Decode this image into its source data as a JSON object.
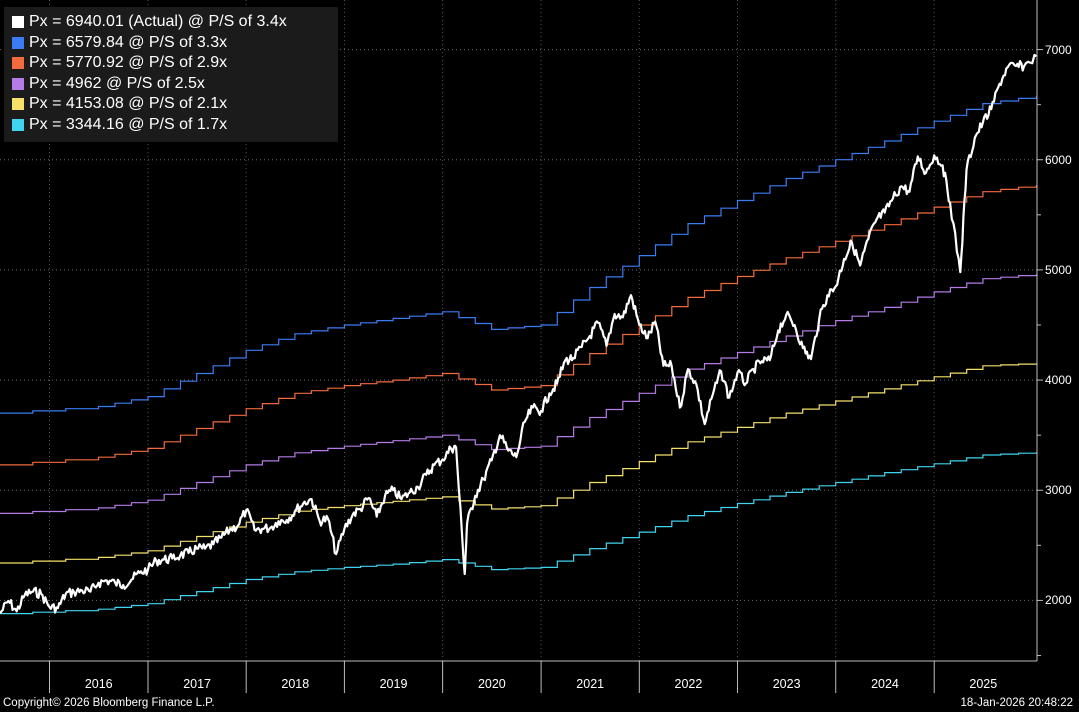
{
  "chart_data": {
    "type": "line",
    "yticks": [
      2000,
      3000,
      4000,
      5000,
      6000,
      7000
    ],
    "ylim": [
      1450,
      7450
    ],
    "xticks": [
      "2016",
      "2017",
      "2018",
      "2019",
      "2020",
      "2021",
      "2022",
      "2023",
      "2024",
      "2025"
    ],
    "xlim": [
      "2015-07-01",
      "2026-01-18"
    ],
    "series": [
      {
        "name": "Px = 6940.01 (Actual) @ P/S of 3.4x",
        "color": "#ffffff",
        "points": [
          [
            "2015-07-01",
            1880
          ],
          [
            "2015-08-01",
            1995
          ],
          [
            "2015-09-01",
            1900
          ],
          [
            "2015-10-01",
            2050
          ],
          [
            "2015-11-01",
            2080
          ],
          [
            "2015-12-01",
            2060
          ],
          [
            "2016-01-01",
            1940
          ],
          [
            "2016-02-01",
            1930
          ],
          [
            "2016-03-01",
            2060
          ],
          [
            "2016-04-01",
            2075
          ],
          [
            "2016-05-01",
            2090
          ],
          [
            "2016-06-01",
            2080
          ],
          [
            "2016-07-01",
            2160
          ],
          [
            "2016-08-01",
            2180
          ],
          [
            "2016-09-01",
            2160
          ],
          [
            "2016-10-01",
            2140
          ],
          [
            "2016-11-01",
            2190
          ],
          [
            "2016-12-01",
            2250
          ],
          [
            "2017-01-01",
            2280
          ],
          [
            "2017-02-01",
            2360
          ],
          [
            "2017-03-01",
            2370
          ],
          [
            "2017-04-01",
            2380
          ],
          [
            "2017-05-01",
            2410
          ],
          [
            "2017-06-01",
            2430
          ],
          [
            "2017-07-01",
            2470
          ],
          [
            "2017-08-01",
            2470
          ],
          [
            "2017-09-01",
            2510
          ],
          [
            "2017-10-01",
            2570
          ],
          [
            "2017-11-01",
            2640
          ],
          [
            "2017-12-01",
            2680
          ],
          [
            "2018-01-01",
            2820
          ],
          [
            "2018-02-01",
            2640
          ],
          [
            "2018-03-01",
            2650
          ],
          [
            "2018-04-01",
            2660
          ],
          [
            "2018-05-01",
            2720
          ],
          [
            "2018-06-01",
            2730
          ],
          [
            "2018-07-01",
            2810
          ],
          [
            "2018-08-01",
            2880
          ],
          [
            "2018-09-01",
            2920
          ],
          [
            "2018-10-01",
            2720
          ],
          [
            "2018-11-01",
            2740
          ],
          [
            "2018-12-01",
            2420
          ],
          [
            "2019-01-01",
            2650
          ],
          [
            "2019-02-01",
            2780
          ],
          [
            "2019-03-01",
            2830
          ],
          [
            "2019-04-01",
            2930
          ],
          [
            "2019-05-01",
            2760
          ],
          [
            "2019-06-01",
            2950
          ],
          [
            "2019-07-01",
            3000
          ],
          [
            "2019-08-01",
            2920
          ],
          [
            "2019-09-01",
            2980
          ],
          [
            "2019-10-01",
            3030
          ],
          [
            "2019-11-01",
            3140
          ],
          [
            "2019-12-01",
            3230
          ],
          [
            "2020-01-01",
            3280
          ],
          [
            "2020-02-01",
            3380
          ],
          [
            "2020-02-20",
            3390
          ],
          [
            "2020-03-23",
            2240
          ],
          [
            "2020-04-01",
            2700
          ],
          [
            "2020-05-01",
            2950
          ],
          [
            "2020-06-01",
            3100
          ],
          [
            "2020-07-01",
            3270
          ],
          [
            "2020-08-01",
            3500
          ],
          [
            "2020-09-01",
            3360
          ],
          [
            "2020-10-01",
            3300
          ],
          [
            "2020-11-01",
            3620
          ],
          [
            "2020-12-01",
            3750
          ],
          [
            "2021-01-01",
            3720
          ],
          [
            "2021-02-01",
            3880
          ],
          [
            "2021-03-01",
            3970
          ],
          [
            "2021-04-01",
            4180
          ],
          [
            "2021-05-01",
            4200
          ],
          [
            "2021-06-01",
            4300
          ],
          [
            "2021-07-01",
            4400
          ],
          [
            "2021-08-01",
            4520
          ],
          [
            "2021-09-01",
            4310
          ],
          [
            "2021-10-01",
            4600
          ],
          [
            "2021-11-01",
            4570
          ],
          [
            "2021-12-01",
            4770
          ],
          [
            "2022-01-01",
            4500
          ],
          [
            "2022-02-01",
            4380
          ],
          [
            "2022-03-01",
            4530
          ],
          [
            "2022-04-01",
            4130
          ],
          [
            "2022-05-01",
            4130
          ],
          [
            "2022-06-01",
            3750
          ],
          [
            "2022-07-01",
            4100
          ],
          [
            "2022-08-01",
            3960
          ],
          [
            "2022-09-01",
            3600
          ],
          [
            "2022-10-01",
            3870
          ],
          [
            "2022-11-01",
            4080
          ],
          [
            "2022-12-01",
            3840
          ],
          [
            "2023-01-01",
            4070
          ],
          [
            "2023-02-01",
            3970
          ],
          [
            "2023-03-01",
            4100
          ],
          [
            "2023-04-01",
            4170
          ],
          [
            "2023-05-01",
            4180
          ],
          [
            "2023-06-01",
            4450
          ],
          [
            "2023-07-01",
            4590
          ],
          [
            "2023-08-01",
            4500
          ],
          [
            "2023-09-01",
            4290
          ],
          [
            "2023-10-01",
            4190
          ],
          [
            "2023-11-01",
            4560
          ],
          [
            "2023-12-01",
            4770
          ],
          [
            "2024-01-01",
            4850
          ],
          [
            "2024-02-01",
            5100
          ],
          [
            "2024-03-01",
            5250
          ],
          [
            "2024-04-01",
            5040
          ],
          [
            "2024-05-01",
            5280
          ],
          [
            "2024-06-01",
            5460
          ],
          [
            "2024-07-01",
            5520
          ],
          [
            "2024-08-01",
            5650
          ],
          [
            "2024-09-01",
            5760
          ],
          [
            "2024-10-01",
            5710
          ],
          [
            "2024-11-01",
            6030
          ],
          [
            "2024-12-01",
            5880
          ],
          [
            "2025-01-01",
            6040
          ],
          [
            "2025-02-01",
            5950
          ],
          [
            "2025-03-01",
            5610
          ],
          [
            "2025-04-08",
            4980
          ],
          [
            "2025-05-01",
            5910
          ],
          [
            "2025-06-01",
            6200
          ],
          [
            "2025-07-01",
            6340
          ],
          [
            "2025-08-01",
            6460
          ],
          [
            "2025-09-01",
            6690
          ],
          [
            "2025-10-01",
            6840
          ],
          [
            "2025-11-01",
            6850
          ],
          [
            "2025-12-01",
            6850
          ],
          [
            "2026-01-16",
            6940
          ]
        ]
      },
      {
        "name": "Px = 6579.84 @ P/S of 3.3x",
        "color": "#3b7cf5",
        "points": [
          [
            "2015-07-01",
            3700
          ],
          [
            "2016-07-01",
            3760
          ],
          [
            "2017-01-01",
            3850
          ],
          [
            "2017-07-01",
            4060
          ],
          [
            "2018-01-01",
            4270
          ],
          [
            "2018-07-01",
            4420
          ],
          [
            "2019-01-01",
            4500
          ],
          [
            "2019-07-01",
            4560
          ],
          [
            "2020-01-01",
            4620
          ],
          [
            "2020-07-01",
            4460
          ],
          [
            "2021-01-01",
            4500
          ],
          [
            "2021-07-01",
            4840
          ],
          [
            "2022-01-01",
            5130
          ],
          [
            "2022-07-01",
            5420
          ],
          [
            "2023-01-01",
            5630
          ],
          [
            "2023-07-01",
            5830
          ],
          [
            "2024-01-01",
            6000
          ],
          [
            "2024-07-01",
            6170
          ],
          [
            "2025-01-01",
            6350
          ],
          [
            "2025-07-01",
            6510
          ],
          [
            "2026-01-16",
            6580
          ]
        ]
      },
      {
        "name": "Px = 5770.92 @ P/S of 2.9x",
        "color": "#f26a3d",
        "points": [
          [
            "2015-07-01",
            3230
          ],
          [
            "2016-07-01",
            3300
          ],
          [
            "2017-01-01",
            3380
          ],
          [
            "2017-07-01",
            3560
          ],
          [
            "2018-01-01",
            3740
          ],
          [
            "2018-07-01",
            3880
          ],
          [
            "2019-01-01",
            3950
          ],
          [
            "2019-07-01",
            4000
          ],
          [
            "2020-01-01",
            4060
          ],
          [
            "2020-07-01",
            3910
          ],
          [
            "2021-01-01",
            3950
          ],
          [
            "2021-07-01",
            4240
          ],
          [
            "2022-01-01",
            4500
          ],
          [
            "2022-07-01",
            4750
          ],
          [
            "2023-01-01",
            4940
          ],
          [
            "2023-07-01",
            5110
          ],
          [
            "2024-01-01",
            5260
          ],
          [
            "2024-07-01",
            5410
          ],
          [
            "2025-01-01",
            5570
          ],
          [
            "2025-07-01",
            5710
          ],
          [
            "2026-01-16",
            5771
          ]
        ]
      },
      {
        "name": "Px = 4962 @ P/S of 2.5x",
        "color": "#b57be6",
        "points": [
          [
            "2015-07-01",
            2790
          ],
          [
            "2016-07-01",
            2840
          ],
          [
            "2017-01-01",
            2910
          ],
          [
            "2017-07-01",
            3070
          ],
          [
            "2018-01-01",
            3230
          ],
          [
            "2018-07-01",
            3340
          ],
          [
            "2019-01-01",
            3400
          ],
          [
            "2019-07-01",
            3450
          ],
          [
            "2020-01-01",
            3500
          ],
          [
            "2020-07-01",
            3370
          ],
          [
            "2021-01-01",
            3400
          ],
          [
            "2021-07-01",
            3660
          ],
          [
            "2022-01-01",
            3880
          ],
          [
            "2022-07-01",
            4100
          ],
          [
            "2023-01-01",
            4250
          ],
          [
            "2023-07-01",
            4400
          ],
          [
            "2024-01-01",
            4540
          ],
          [
            "2024-07-01",
            4660
          ],
          [
            "2025-01-01",
            4800
          ],
          [
            "2025-07-01",
            4920
          ],
          [
            "2026-01-16",
            4962
          ]
        ]
      },
      {
        "name": "Px = 4153.08 @ P/S of 2.1x",
        "color": "#f5e06a",
        "points": [
          [
            "2015-07-01",
            2340
          ],
          [
            "2016-07-01",
            2390
          ],
          [
            "2017-01-01",
            2450
          ],
          [
            "2017-07-01",
            2580
          ],
          [
            "2018-01-01",
            2710
          ],
          [
            "2018-07-01",
            2810
          ],
          [
            "2019-01-01",
            2860
          ],
          [
            "2019-07-01",
            2900
          ],
          [
            "2020-01-01",
            2940
          ],
          [
            "2020-07-01",
            2830
          ],
          [
            "2021-01-01",
            2860
          ],
          [
            "2021-07-01",
            3070
          ],
          [
            "2022-01-01",
            3260
          ],
          [
            "2022-07-01",
            3440
          ],
          [
            "2023-01-01",
            3570
          ],
          [
            "2023-07-01",
            3700
          ],
          [
            "2024-01-01",
            3810
          ],
          [
            "2024-07-01",
            3920
          ],
          [
            "2025-01-01",
            4030
          ],
          [
            "2025-07-01",
            4130
          ],
          [
            "2026-01-16",
            4153
          ]
        ]
      },
      {
        "name": "Px = 3344.16 @ P/S of 1.7x",
        "color": "#3fd4f0",
        "points": [
          [
            "2015-07-01",
            1880
          ],
          [
            "2016-07-01",
            1920
          ],
          [
            "2017-01-01",
            1970
          ],
          [
            "2017-07-01",
            2080
          ],
          [
            "2018-01-01",
            2190
          ],
          [
            "2018-07-01",
            2260
          ],
          [
            "2019-01-01",
            2300
          ],
          [
            "2019-07-01",
            2330
          ],
          [
            "2020-01-01",
            2370
          ],
          [
            "2020-07-01",
            2280
          ],
          [
            "2021-01-01",
            2300
          ],
          [
            "2021-07-01",
            2470
          ],
          [
            "2022-01-01",
            2620
          ],
          [
            "2022-07-01",
            2770
          ],
          [
            "2023-01-01",
            2880
          ],
          [
            "2023-07-01",
            2980
          ],
          [
            "2024-01-01",
            3070
          ],
          [
            "2024-07-01",
            3160
          ],
          [
            "2025-01-01",
            3240
          ],
          [
            "2025-07-01",
            3320
          ],
          [
            "2026-01-16",
            3344
          ]
        ]
      }
    ]
  },
  "footer": {
    "copyright": "Copyright© 2026 Bloomberg Finance L.P.",
    "timestamp": "18-Jan-2026 20:48:22"
  }
}
